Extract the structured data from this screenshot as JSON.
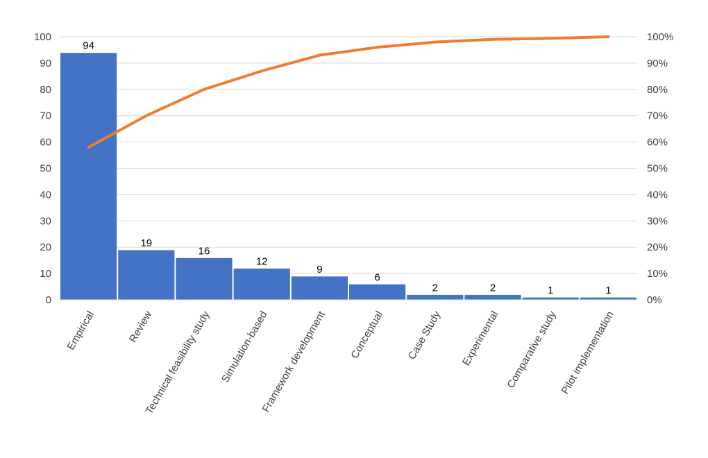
{
  "chart_data": {
    "type": "bar",
    "title": "",
    "xlabel": "",
    "ylabel": "",
    "categories": [
      "Empirical",
      "Review",
      "Technical feasibility study",
      "Simulation-based",
      "Framework development",
      "Conceptual",
      "Case Study",
      "Experimental",
      "Comparative study",
      "Pilot implementation"
    ],
    "values": [
      94,
      19,
      16,
      12,
      9,
      6,
      2,
      2,
      1,
      1
    ],
    "cumulative_percent": [
      58,
      70,
      80,
      87,
      93,
      96,
      98,
      99,
      99.4,
      100
    ],
    "ylim": [
      0,
      100
    ],
    "y_ticks": [
      "0",
      "10",
      "20",
      "30",
      "40",
      "50",
      "60",
      "70",
      "80",
      "90",
      "100"
    ],
    "y2lim": [
      0,
      100
    ],
    "y2_ticks": [
      "0%",
      "10%",
      "20%",
      "30%",
      "40%",
      "50%",
      "60%",
      "70%",
      "80%",
      "90%",
      "100%"
    ],
    "grid": true,
    "legend": "none",
    "colors": {
      "bar": "#4472c4",
      "line": "#ed7d31"
    }
  }
}
